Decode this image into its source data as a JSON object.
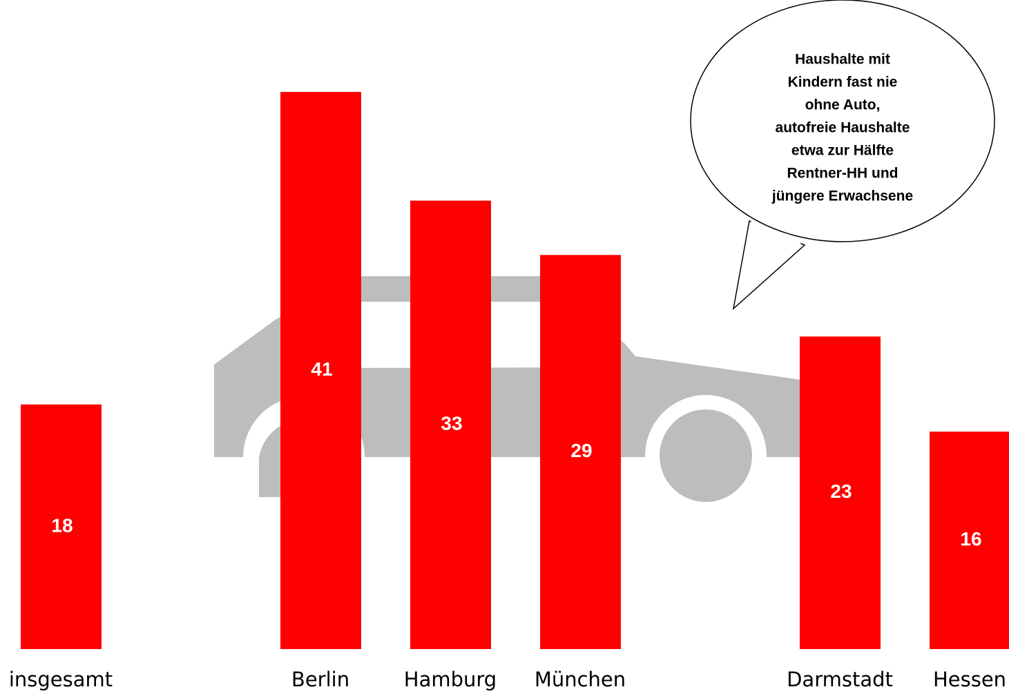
{
  "chart_data": {
    "type": "bar",
    "annotation": [
      "Haushalte mit",
      "Kindern fast nie",
      "ohne Auto,",
      "autofreie Haushalte",
      "etwa zur Hälfte",
      "Rentner-HH und",
      "jüngere Erwachsene"
    ],
    "categories": [
      "insgesamt",
      null,
      "Berlin",
      "Hamburg",
      "München",
      null,
      "Darmstadt",
      "Hessen"
    ],
    "values": [
      18,
      null,
      41,
      33,
      29,
      null,
      23,
      16
    ],
    "color": "#ff0000",
    "ylim": [
      0,
      48
    ]
  }
}
